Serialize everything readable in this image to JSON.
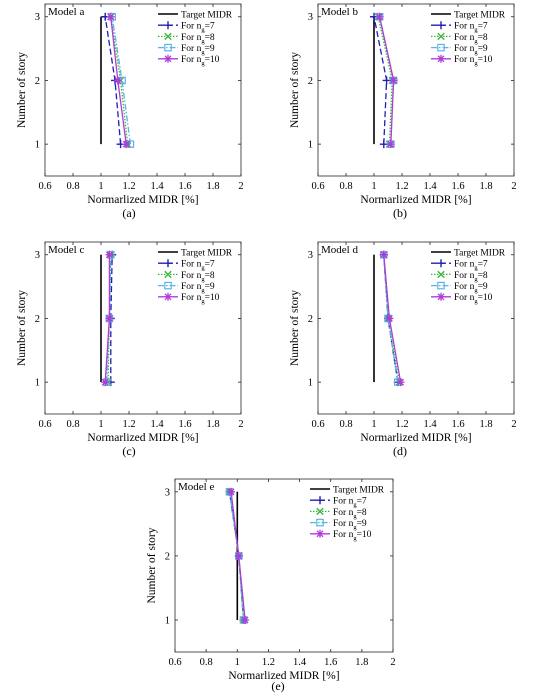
{
  "chart_data": [
    {
      "type": "line",
      "title": "Model a",
      "caption": "(a)",
      "xlabel": "Normarlized MIDR [%]",
      "ylabel": "Number of story",
      "xlim": [
        0.6,
        2
      ],
      "ylim": [
        0.5,
        3.2
      ],
      "xticks": [
        "0.6",
        "0.8",
        "1",
        "1.2",
        "1.4",
        "1.6",
        "1.8",
        "2"
      ],
      "yticks": [
        "1",
        "2",
        "3"
      ],
      "legend_position": "top-right",
      "series": [
        {
          "name": "Target MIDR",
          "name_prefix": "Target MIDR",
          "name_sub": "",
          "name_suffix": "",
          "x": [
            1.0,
            1.0,
            1.0
          ],
          "y": [
            1,
            2,
            3
          ]
        },
        {
          "name": "For n_g=7",
          "name_prefix": "For n",
          "name_sub": "g",
          "name_suffix": "=7",
          "x": [
            1.14,
            1.1,
            1.03
          ],
          "y": [
            1,
            2,
            3
          ]
        },
        {
          "name": "For n_g=8",
          "name_prefix": "For n",
          "name_sub": "g",
          "name_suffix": "=8",
          "x": [
            1.19,
            1.14,
            1.07
          ],
          "y": [
            1,
            2,
            3
          ]
        },
        {
          "name": "For n_g=9",
          "name_prefix": "For n",
          "name_sub": "g",
          "name_suffix": "=9",
          "x": [
            1.21,
            1.15,
            1.08
          ],
          "y": [
            1,
            2,
            3
          ]
        },
        {
          "name": "For n_g=10",
          "name_prefix": "For n",
          "name_sub": "g",
          "name_suffix": "=10",
          "x": [
            1.18,
            1.12,
            1.07
          ],
          "y": [
            1,
            2,
            3
          ]
        }
      ]
    },
    {
      "type": "line",
      "title": "Model b",
      "caption": "(b)",
      "xlabel": "Normarlized MIDR [%]",
      "ylabel": "Number of story",
      "xlim": [
        0.6,
        2
      ],
      "ylim": [
        0.5,
        3.2
      ],
      "xticks": [
        "0.6",
        "0.8",
        "1",
        "1.2",
        "1.4",
        "1.6",
        "1.8",
        "2"
      ],
      "yticks": [
        "1",
        "2",
        "3"
      ],
      "legend_position": "top-right",
      "series": [
        {
          "name": "Target MIDR",
          "name_prefix": "Target MIDR",
          "name_sub": "",
          "name_suffix": "",
          "x": [
            1.0,
            1.0,
            1.0
          ],
          "y": [
            1,
            2,
            3
          ]
        },
        {
          "name": "For n_g=7",
          "name_prefix": "For n",
          "name_sub": "g",
          "name_suffix": "=7",
          "x": [
            1.07,
            1.09,
            1.0
          ],
          "y": [
            1,
            2,
            3
          ]
        },
        {
          "name": "For n_g=8",
          "name_prefix": "For n",
          "name_sub": "g",
          "name_suffix": "=8",
          "x": [
            1.11,
            1.13,
            1.03
          ],
          "y": [
            1,
            2,
            3
          ]
        },
        {
          "name": "For n_g=9",
          "name_prefix": "For n",
          "name_sub": "g",
          "name_suffix": "=9",
          "x": [
            1.12,
            1.14,
            1.04
          ],
          "y": [
            1,
            2,
            3
          ]
        },
        {
          "name": "For n_g=10",
          "name_prefix": "For n",
          "name_sub": "g",
          "name_suffix": "=10",
          "x": [
            1.12,
            1.14,
            1.04
          ],
          "y": [
            1,
            2,
            3
          ]
        }
      ]
    },
    {
      "type": "line",
      "title": "Model c",
      "caption": "(c)",
      "xlabel": "Normarlized MIDR [%]",
      "ylabel": "Number of story",
      "xlim": [
        0.6,
        2
      ],
      "ylim": [
        0.5,
        3.2
      ],
      "xticks": [
        "0.6",
        "0.8",
        "1",
        "1.2",
        "1.4",
        "1.6",
        "1.8",
        "2"
      ],
      "yticks": [
        "1",
        "2",
        "3"
      ],
      "legend_position": "top-right",
      "series": [
        {
          "name": "Target MIDR",
          "name_prefix": "Target MIDR",
          "name_sub": "",
          "name_suffix": "",
          "x": [
            1.0,
            1.0,
            1.0
          ],
          "y": [
            1,
            2,
            3
          ]
        },
        {
          "name": "For n_g=7",
          "name_prefix": "For n",
          "name_sub": "g",
          "name_suffix": "=7",
          "x": [
            1.07,
            1.07,
            1.08
          ],
          "y": [
            1,
            2,
            3
          ]
        },
        {
          "name": "For n_g=8",
          "name_prefix": "For n",
          "name_sub": "g",
          "name_suffix": "=8",
          "x": [
            1.05,
            1.06,
            1.07
          ],
          "y": [
            1,
            2,
            3
          ]
        },
        {
          "name": "For n_g=9",
          "name_prefix": "For n",
          "name_sub": "g",
          "name_suffix": "=9",
          "x": [
            1.04,
            1.06,
            1.07
          ],
          "y": [
            1,
            2,
            3
          ]
        },
        {
          "name": "For n_g=10",
          "name_prefix": "For n",
          "name_sub": "g",
          "name_suffix": "=10",
          "x": [
            1.03,
            1.06,
            1.06
          ],
          "y": [
            1,
            2,
            3
          ]
        }
      ]
    },
    {
      "type": "line",
      "title": "Model d",
      "caption": "(d)",
      "xlabel": "Normarlized MIDR [%]",
      "ylabel": "Number of story",
      "xlim": [
        0.6,
        2
      ],
      "ylim": [
        0.5,
        3.2
      ],
      "xticks": [
        "0.6",
        "0.8",
        "1",
        "1.2",
        "1.4",
        "1.6",
        "1.8",
        "2"
      ],
      "yticks": [
        "1",
        "2",
        "3"
      ],
      "legend_position": "top-right",
      "series": [
        {
          "name": "Target MIDR",
          "name_prefix": "Target MIDR",
          "name_sub": "",
          "name_suffix": "",
          "x": [
            1.0,
            1.0,
            1.0
          ],
          "y": [
            1,
            2,
            3
          ]
        },
        {
          "name": "For n_g=7",
          "name_prefix": "For n",
          "name_sub": "g",
          "name_suffix": "=7",
          "x": [
            1.17,
            1.1,
            1.07
          ],
          "y": [
            1,
            2,
            3
          ]
        },
        {
          "name": "For n_g=8",
          "name_prefix": "For n",
          "name_sub": "g",
          "name_suffix": "=8",
          "x": [
            1.18,
            1.1,
            1.07
          ],
          "y": [
            1,
            2,
            3
          ]
        },
        {
          "name": "For n_g=9",
          "name_prefix": "For n",
          "name_sub": "g",
          "name_suffix": "=9",
          "x": [
            1.17,
            1.1,
            1.07
          ],
          "y": [
            1,
            2,
            3
          ]
        },
        {
          "name": "For n_g=10",
          "name_prefix": "For n",
          "name_sub": "g",
          "name_suffix": "=10",
          "x": [
            1.19,
            1.11,
            1.07
          ],
          "y": [
            1,
            2,
            3
          ]
        }
      ]
    },
    {
      "type": "line",
      "title": "Model e",
      "caption": "(e)",
      "xlabel": "Normarlized MIDR [%]",
      "ylabel": "Number of story",
      "xlim": [
        0.6,
        2
      ],
      "ylim": [
        0.5,
        3.2
      ],
      "xticks": [
        "0.6",
        "0.8",
        "1",
        "1.2",
        "1.4",
        "1.6",
        "1.8",
        "2"
      ],
      "yticks": [
        "1",
        "2",
        "3"
      ],
      "legend_position": "top-right",
      "series": [
        {
          "name": "Target MIDR",
          "name_prefix": "Target MIDR",
          "name_sub": "",
          "name_suffix": "",
          "x": [
            1.0,
            1.0,
            1.0
          ],
          "y": [
            1,
            2,
            3
          ]
        },
        {
          "name": "For n_g=7",
          "name_prefix": "For n",
          "name_sub": "g",
          "name_suffix": "=7",
          "x": [
            1.04,
            1.01,
            0.95
          ],
          "y": [
            1,
            2,
            3
          ]
        },
        {
          "name": "For n_g=8",
          "name_prefix": "For n",
          "name_sub": "g",
          "name_suffix": "=8",
          "x": [
            1.04,
            1.01,
            0.95
          ],
          "y": [
            1,
            2,
            3
          ]
        },
        {
          "name": "For n_g=9",
          "name_prefix": "For n",
          "name_sub": "g",
          "name_suffix": "=9",
          "x": [
            1.04,
            1.01,
            0.95
          ],
          "y": [
            1,
            2,
            3
          ]
        },
        {
          "name": "For n_g=10",
          "name_prefix": "For n",
          "name_sub": "g",
          "name_suffix": "=10",
          "x": [
            1.05,
            1.01,
            0.96
          ],
          "y": [
            1,
            2,
            3
          ]
        }
      ]
    }
  ],
  "series_styles": [
    {
      "color": "#000000",
      "dash": "",
      "marker": "none"
    },
    {
      "color": "#1f1fb4",
      "dash": "6,3",
      "marker": "plus"
    },
    {
      "color": "#3cb43c",
      "dash": "1.5,1.5",
      "marker": "cross"
    },
    {
      "color": "#5ab4e6",
      "dash": "6,2,1.5,2",
      "marker": "square"
    },
    {
      "color": "#b03cd8",
      "dash": "",
      "marker": "star"
    }
  ]
}
